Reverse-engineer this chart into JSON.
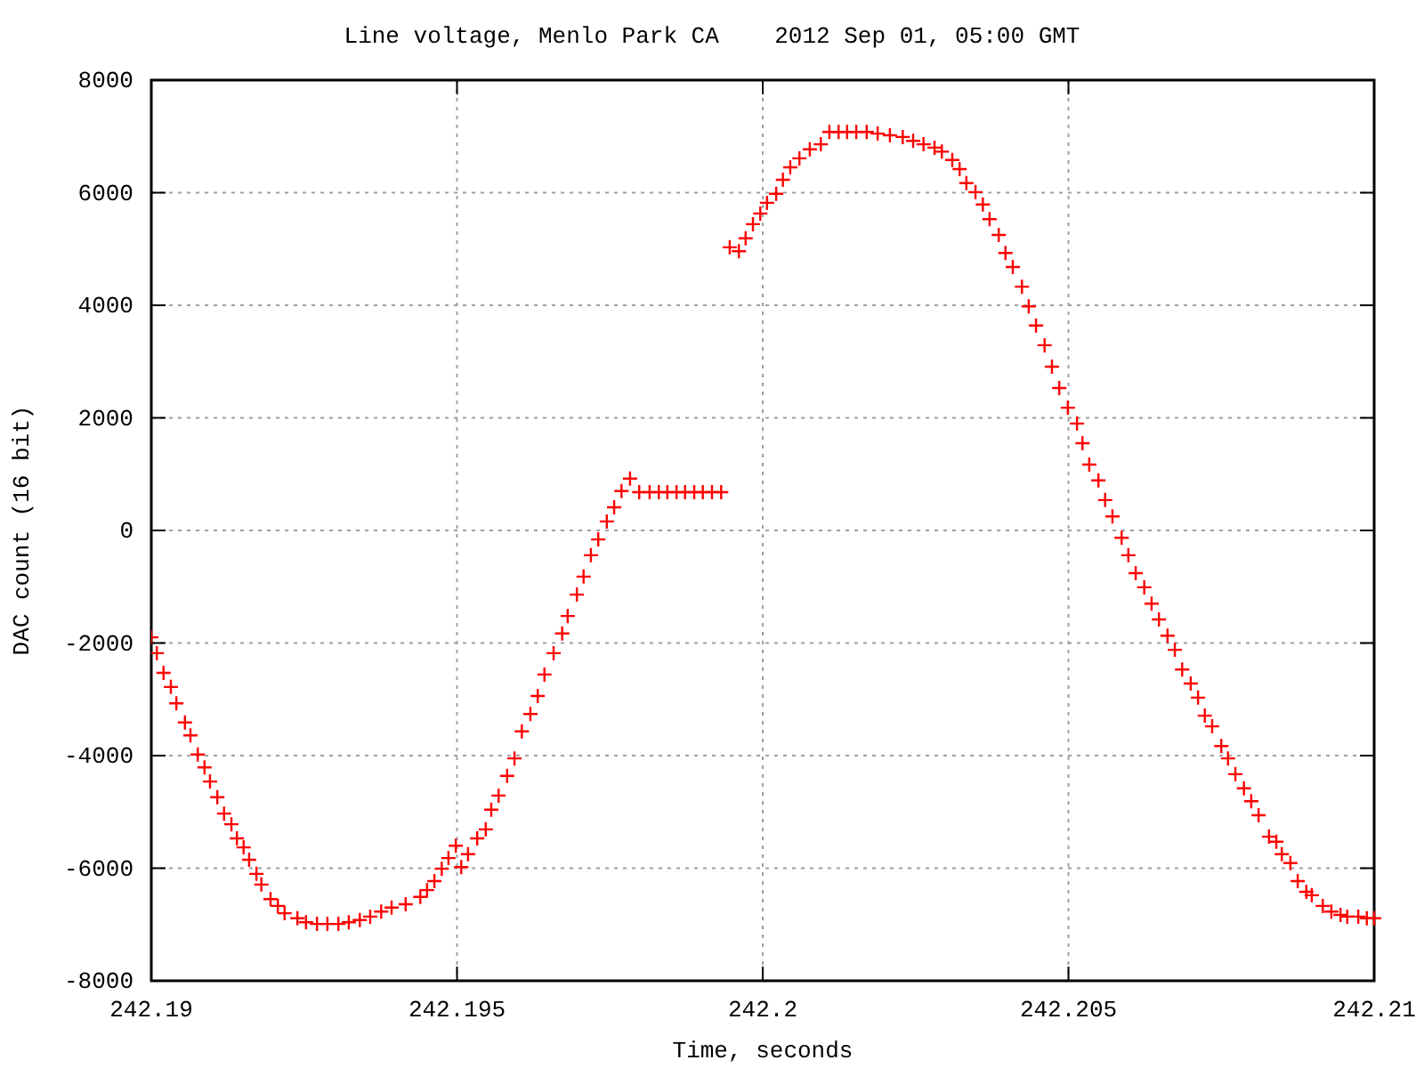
{
  "chart_data": {
    "type": "scatter",
    "title": "Line voltage, Menlo Park CA    2012 Sep 01, 05:00 GMT",
    "xlabel": "Time, seconds",
    "ylabel": "DAC count (16 bit)",
    "xlim": [
      242.19,
      242.21
    ],
    "ylim": [
      -8000,
      8000
    ],
    "xticks": [
      242.19,
      242.195,
      242.2,
      242.205,
      242.21
    ],
    "yticks": [
      -8000,
      -6000,
      -4000,
      -2000,
      0,
      2000,
      4000,
      6000,
      8000
    ],
    "grid": true,
    "marker": "cross",
    "series": [
      {
        "color": "#ff0000",
        "x": [
          242.19,
          242.19009,
          242.1902,
          242.19032,
          242.19041,
          242.19055,
          242.19064,
          242.19076,
          242.19087,
          242.19096,
          242.19108,
          242.19119,
          242.19131,
          242.1914,
          242.19151,
          242.1916,
          242.19172,
          242.1918,
          242.19195,
          242.19207,
          242.19218,
          242.19239,
          242.19253,
          242.19271,
          242.19288,
          242.19306,
          242.19323,
          242.19341,
          242.19358,
          242.19376,
          242.19393,
          242.19416,
          242.1944,
          242.19451,
          242.19463,
          242.19475,
          242.19486,
          242.19498,
          242.19507,
          242.19518,
          242.19533,
          242.19547,
          242.19556,
          242.19568,
          242.19582,
          242.19594,
          242.19606,
          242.1962,
          242.19632,
          242.19643,
          242.19658,
          242.19672,
          242.19681,
          242.19696,
          242.19707,
          242.19719,
          242.19731,
          242.19745,
          242.19757,
          242.19769,
          242.19783,
          242.19798,
          242.19815,
          242.1983,
          242.19844,
          242.19859,
          242.19873,
          242.19888,
          242.19902,
          242.19917,
          242.19932,
          242.19946,
          242.19961,
          242.19972,
          242.19984,
          242.19996,
          242.20007,
          242.20022,
          242.20033,
          242.20045,
          242.2006,
          242.20077,
          242.20095,
          242.20109,
          242.20124,
          242.20138,
          242.20153,
          242.2017,
          242.20188,
          242.20208,
          242.20229,
          242.20246,
          242.20263,
          242.20281,
          242.20293,
          242.2031,
          242.20322,
          242.20333,
          242.20348,
          242.2036,
          242.20371,
          242.20386,
          242.20397,
          242.20409,
          242.20424,
          242.20435,
          242.20447,
          242.20461,
          242.20473,
          242.20485,
          242.20499,
          242.20514,
          242.20523,
          242.20534,
          242.20549,
          242.2056,
          242.20572,
          242.20587,
          242.20598,
          242.2061,
          242.20624,
          242.20636,
          242.20648,
          242.20662,
          242.20674,
          242.20686,
          242.207,
          242.20712,
          242.20723,
          242.20735,
          242.2075,
          242.20761,
          242.20773,
          242.20787,
          242.20799,
          242.20811,
          242.20828,
          242.2084,
          242.20849,
          242.20863,
          242.20875,
          242.20889,
          242.20898,
          242.20916,
          242.2093,
          242.20945,
          242.20956,
          242.20974,
          242.20988,
          242.21
        ],
        "values": [
          -1900,
          -2180,
          -2530,
          -2780,
          -3070,
          -3410,
          -3640,
          -3980,
          -4210,
          -4460,
          -4740,
          -5030,
          -5220,
          -5470,
          -5630,
          -5850,
          -6100,
          -6290,
          -6550,
          -6670,
          -6800,
          -6890,
          -6960,
          -6990,
          -6990,
          -6990,
          -6960,
          -6920,
          -6860,
          -6770,
          -6700,
          -6640,
          -6510,
          -6390,
          -6230,
          -6010,
          -5820,
          -5600,
          -5980,
          -5750,
          -5470,
          -5310,
          -4960,
          -4710,
          -4360,
          -4050,
          -3570,
          -3260,
          -2940,
          -2560,
          -2180,
          -1830,
          -1520,
          -1140,
          -820,
          -440,
          -160,
          160,
          410,
          700,
          920,
          680,
          680,
          680,
          680,
          680,
          680,
          680,
          680,
          680,
          680,
          5030,
          4960,
          5190,
          5440,
          5630,
          5820,
          5980,
          6230,
          6450,
          6610,
          6770,
          6860,
          7080,
          7080,
          7080,
          7080,
          7080,
          7050,
          7020,
          6990,
          6920,
          6860,
          6800,
          6730,
          6580,
          6420,
          6170,
          6010,
          5790,
          5530,
          5250,
          4930,
          4680,
          4330,
          3980,
          3640,
          3290,
          2910,
          2530,
          2180,
          1900,
          1550,
          1170,
          890,
          540,
          250,
          -130,
          -440,
          -760,
          -1010,
          -1300,
          -1580,
          -1870,
          -2120,
          -2470,
          -2720,
          -2970,
          -3290,
          -3480,
          -3830,
          -4050,
          -4330,
          -4580,
          -4810,
          -5060,
          -5440,
          -5530,
          -5750,
          -5910,
          -6230,
          -6420,
          -6480,
          -6670,
          -6770,
          -6830,
          -6860,
          -6860,
          -6890,
          -6890
        ]
      }
    ]
  }
}
